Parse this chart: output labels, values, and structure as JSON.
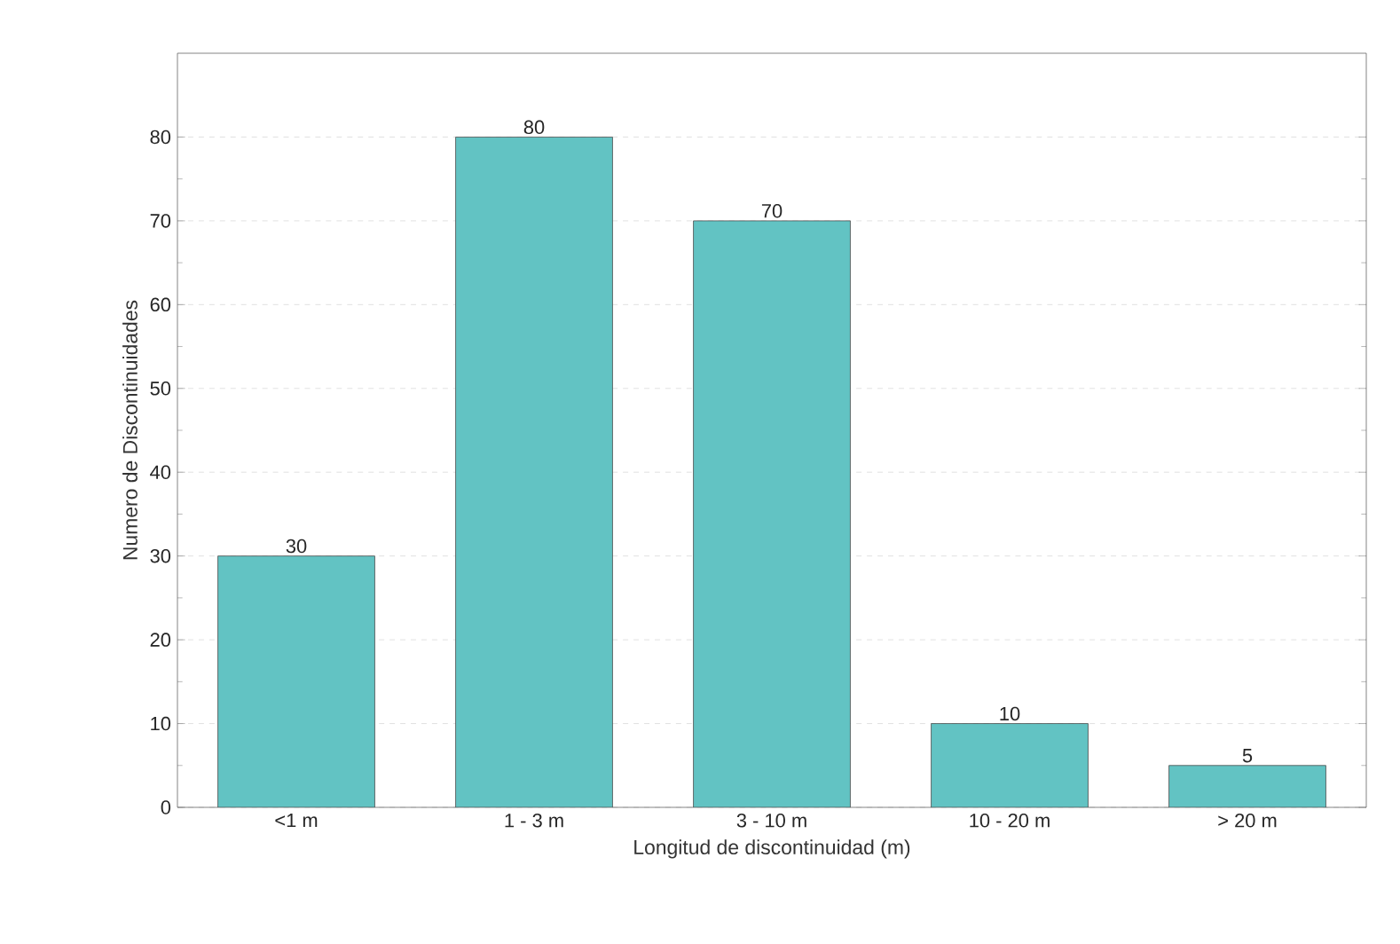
{
  "chart_data": {
    "type": "bar",
    "xlabel": "Longitud de discontinuidad (m)",
    "ylabel": "Numero de Discontinuidades",
    "categories": [
      "<1 m",
      "1 - 3 m",
      "3 - 10 m",
      "10 - 20 m",
      "> 20 m"
    ],
    "values": [
      30,
      80,
      70,
      10,
      5
    ],
    "color": "#62c3c3",
    "ylim": [
      0,
      90
    ],
    "yticks": [
      0,
      10,
      20,
      30,
      40,
      50,
      60,
      70,
      80
    ],
    "grid": "y",
    "data_labels": true
  }
}
